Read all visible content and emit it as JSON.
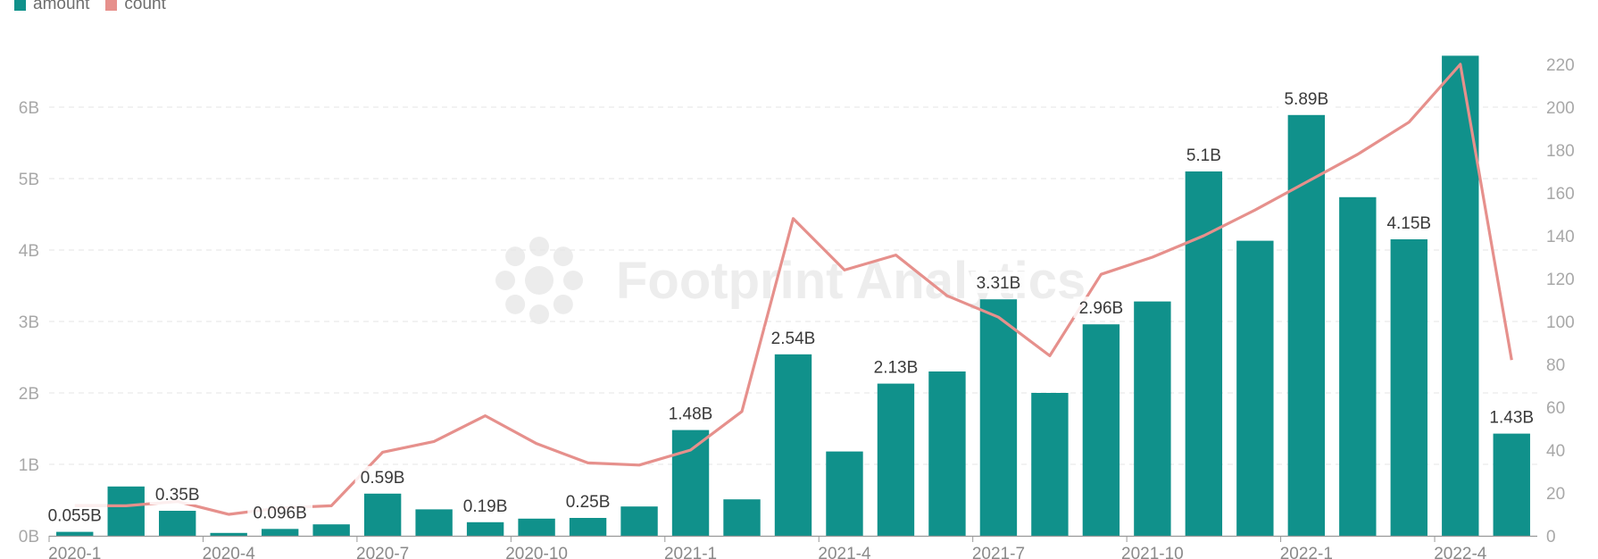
{
  "legend": {
    "amount_label": "amount",
    "count_label": "count"
  },
  "watermark": "Footprint Analytics",
  "colors": {
    "amount": "#10918b",
    "count": "#e6908c",
    "grid": "#e6e6e6",
    "axis": "#999999"
  },
  "chart_data": {
    "type": "bar",
    "categories": [
      "2020-1",
      "2020-2",
      "2020-3",
      "2020-4",
      "2020-5",
      "2020-6",
      "2020-7",
      "2020-8",
      "2020-9",
      "2020-10",
      "2020-11",
      "2020-12",
      "2021-1",
      "2021-2",
      "2021-3",
      "2021-4",
      "2021-5",
      "2021-6",
      "2021-7",
      "2021-8",
      "2021-9",
      "2021-10",
      "2021-11",
      "2021-12",
      "2022-1",
      "2022-2",
      "2022-3",
      "2022-4",
      "2022-5"
    ],
    "x_tick_labels": [
      "2020-1",
      "2020-4",
      "2020-7",
      "2020-10",
      "2021-1",
      "2021-4",
      "2021-7",
      "2021-10",
      "2022-1",
      "2022-4"
    ],
    "series": [
      {
        "name": "amount",
        "type": "bar",
        "axis": "left",
        "values": [
          0.055,
          0.69,
          0.35,
          0.04,
          0.096,
          0.16,
          0.59,
          0.37,
          0.19,
          0.24,
          0.25,
          0.41,
          1.48,
          0.51,
          2.54,
          1.18,
          2.13,
          2.3,
          3.31,
          2.0,
          2.96,
          3.28,
          5.1,
          4.13,
          5.89,
          4.74,
          4.15,
          6.72,
          1.43
        ],
        "labels": [
          "0.055B",
          "",
          "0.35B",
          "",
          "0.096B",
          "",
          "0.59B",
          "",
          "0.19B",
          "",
          "0.25B",
          "",
          "1.48B",
          "",
          "2.54B",
          "",
          "2.13B",
          "",
          "3.31B",
          "",
          "2.96B",
          "",
          "5.1B",
          "",
          "5.89B",
          "",
          "4.15B",
          "",
          "1.43B"
        ]
      },
      {
        "name": "count",
        "type": "line",
        "axis": "right",
        "values": [
          14,
          14,
          16,
          10,
          13,
          14,
          39,
          44,
          56,
          43,
          34,
          33,
          40,
          58,
          148,
          124,
          131,
          112,
          102,
          84,
          122,
          130,
          140,
          152,
          165,
          178,
          193,
          220,
          82
        ]
      }
    ],
    "y_left": {
      "ticks": [
        "0B",
        "1B",
        "2B",
        "3B",
        "4B",
        "5B",
        "6B"
      ],
      "ylim": [
        0,
        6.9
      ]
    },
    "y_right": {
      "ticks": [
        "0",
        "20",
        "40",
        "60",
        "80",
        "100",
        "120",
        "140",
        "160",
        "180",
        "200",
        "220"
      ],
      "ylim": [
        0,
        230
      ]
    },
    "grid": true,
    "legend_position": "top-left"
  }
}
